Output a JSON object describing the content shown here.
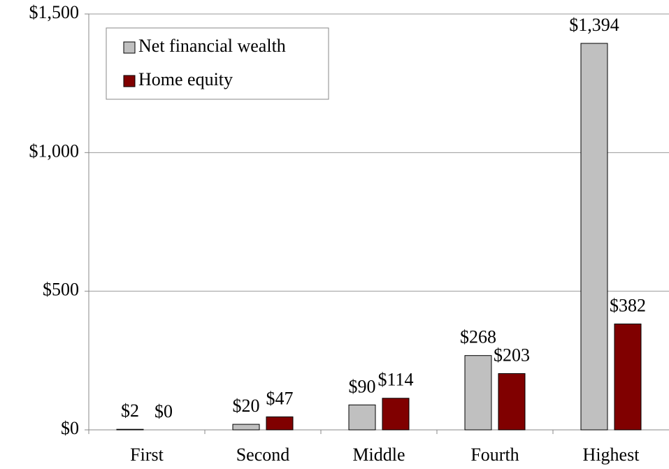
{
  "chart_data": {
    "type": "bar",
    "categories": [
      "First",
      "Second",
      "Middle",
      "Fourth",
      "Highest"
    ],
    "series": [
      {
        "name": "Net financial wealth",
        "color": "#c0c0c0",
        "values": [
          2,
          20,
          90,
          268,
          1394
        ],
        "value_labels": [
          "$2",
          "$20",
          "$90",
          "$268",
          "$1,394"
        ]
      },
      {
        "name": "Home equity",
        "color": "#800000",
        "values": [
          0,
          47,
          114,
          203,
          382
        ],
        "value_labels": [
          "$0",
          "$47",
          "$114",
          "$203",
          "$382"
        ]
      }
    ],
    "ylim": [
      0,
      1500
    ],
    "yticks": [
      {
        "value": 0,
        "label": "$0"
      },
      {
        "value": 500,
        "label": "$500"
      },
      {
        "value": 1000,
        "label": "$1,000"
      },
      {
        "value": 1500,
        "label": "$1,500"
      }
    ],
    "grid": true
  }
}
